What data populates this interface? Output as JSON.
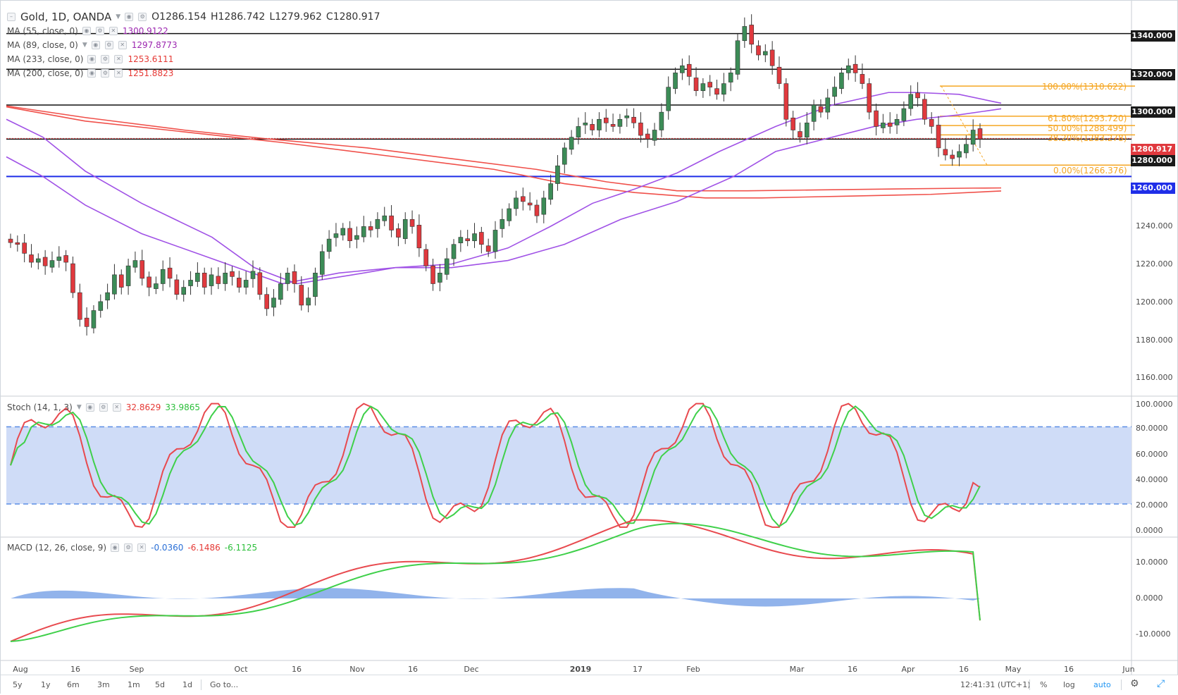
{
  "symbol": {
    "label": "Gold, 1D, OANDA",
    "ohlc": {
      "o": "O1286.154",
      "h": "H1286.742",
      "l": "L1279.962",
      "c": "C1280.917"
    }
  },
  "indicators": [
    {
      "label": "MA (55, close, 0)",
      "value": "1300.9122",
      "color": "#9c27b0"
    },
    {
      "label": "MA (89, close, 0)",
      "value": "1297.8773",
      "color": "#9c27b0"
    },
    {
      "label": "MA (233, close, 0)",
      "value": "1253.6111",
      "color": "#e53935"
    },
    {
      "label": "MA (200, close, 0)",
      "value": "1251.8823",
      "color": "#e53935"
    }
  ],
  "stoch": {
    "label": "Stoch (14, 1, 3)",
    "k": "32.8629",
    "d": "33.9865"
  },
  "macd": {
    "label": "MACD (12, 26, close, 9)",
    "hist": "-0.0360",
    "macd": "-6.1486",
    "signal": "-6.1125"
  },
  "price_axis": [
    "1340.000",
    "1320.000",
    "1300.000",
    "1280.000",
    "1260.000",
    "1240.000",
    "1220.000",
    "1200.000",
    "1180.000",
    "1160.000"
  ],
  "price_labels": {
    "current": "1280.917",
    "level_1340": "1340.000",
    "level_1320": "1320.000",
    "level_1300": "1300.000",
    "level_1280": "1280.000",
    "level_1260": "1260.000"
  },
  "stoch_axis": [
    "100.0000",
    "80.0000",
    "60.0000",
    "40.0000",
    "20.0000",
    "0.0000"
  ],
  "macd_axis": [
    "10.0000",
    "0.0000",
    "-10.0000"
  ],
  "fib_levels": [
    {
      "label": "100.00%(1310.622)",
      "price": 1310.622
    },
    {
      "label": "61.80%(1293.720)",
      "price": 1293.72
    },
    {
      "label": "50.00%(1288.499)",
      "price": 1288.499
    },
    {
      "label": "38.20%(1283.278)",
      "price": 1283.278
    },
    {
      "label": "0.00%(1266.376)",
      "price": 1266.376
    }
  ],
  "horizontal_levels": [
    1340,
    1320,
    1300,
    1280.917,
    1260
  ],
  "date_axis": [
    "Aug",
    "16",
    "Sep",
    "Oct",
    "16",
    "Nov",
    "16",
    "Dec",
    "2019",
    "17",
    "Feb",
    "Mar",
    "16",
    "Apr",
    "16",
    "May",
    "16",
    "Jun"
  ],
  "bottom_bar": {
    "timeframes": [
      "5y",
      "1y",
      "6m",
      "3m",
      "1m",
      "5d",
      "1d"
    ],
    "goto": "Go to...",
    "clock": "12:41:31 (UTC+1)",
    "percent": "%",
    "log": "log",
    "auto": "auto"
  },
  "colors": {
    "up": "#3c8c57",
    "down": "#e0393e",
    "ma_purple": "#a052e6",
    "ma_red": "#f0504a",
    "fib": "#f5a623",
    "level_blue": "#1f2ee8",
    "stoch_k": "#e84a4f",
    "stoch_d": "#3fd04a",
    "band": "#cfdcf7",
    "hist": "#7ea6e8"
  }
}
